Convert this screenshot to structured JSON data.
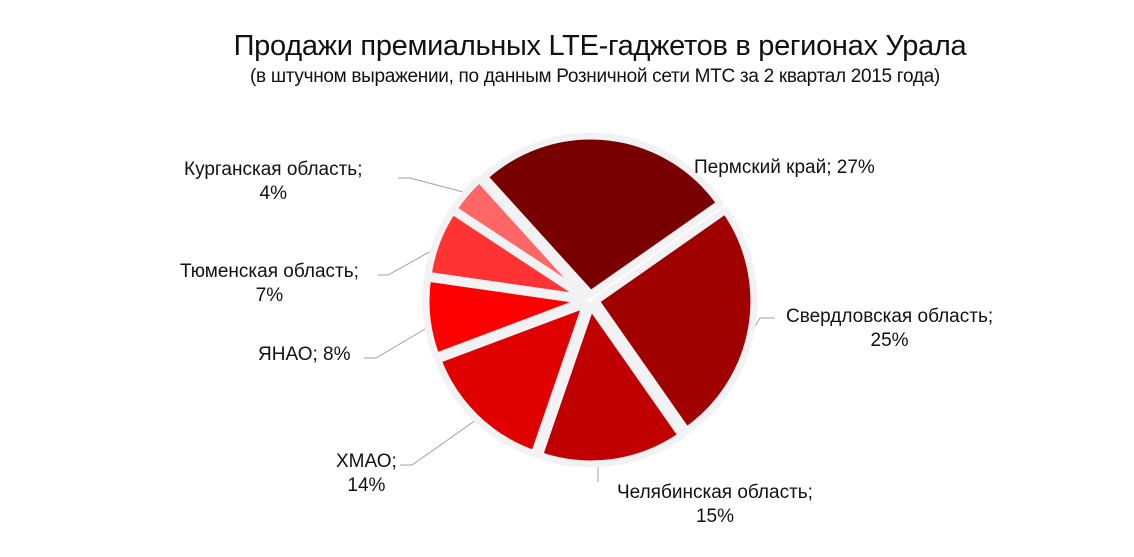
{
  "chart_data": {
    "type": "pie",
    "title": "Продажи премиальных LTE-гаджетов в регионах Урала",
    "subtitle": "(в штучном выражении, по данным Розничной сети МТС за 2 квартал 2015 года)",
    "categories": [
      "Пермский край",
      "Свердловская область",
      "Челябинская область",
      "ХМАО",
      "ЯНАО",
      "Тюменская область",
      "Курганская область"
    ],
    "values": [
      27,
      25,
      15,
      14,
      8,
      7,
      4
    ],
    "unit": "%",
    "colors": [
      "#780000",
      "#a00000",
      "#c00000",
      "#e00000",
      "#ff0000",
      "#ff3333",
      "#ff6666"
    ],
    "exploded": true,
    "legend": "none (data labels with leader lines)"
  },
  "labels": {
    "perm": {
      "line1": "Пермский край; 27%"
    },
    "sverdlovsk": {
      "line1": "Свердловская область;",
      "line2": "25%"
    },
    "chelyabinsk": {
      "line1": "Челябинская область;",
      "line2": "15%"
    },
    "khmao": {
      "line1": "ХМАО;",
      "line2": "14%"
    },
    "yanao": {
      "line1": "ЯНАО; 8%"
    },
    "tyumen": {
      "line1": "Тюменская область;",
      "line2": "7%"
    },
    "kurgan": {
      "line1": "Курганская область;",
      "line2": "4%"
    }
  }
}
